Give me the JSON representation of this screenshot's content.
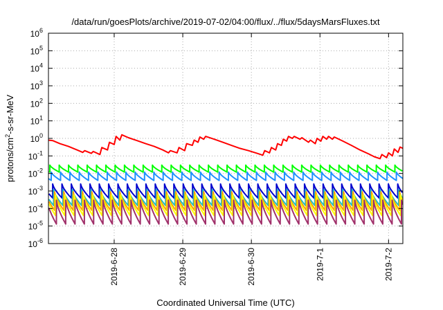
{
  "chart_data": {
    "type": "line",
    "title": "/data/run/goesPlots/archive/2019-07-02/04:00/flux/../flux/5daysMarsFluxes.txt",
    "xlabel": "Coordinated Universal Time (UTC)",
    "ylabel_parts": {
      "base": "protons/cm",
      "sup": "2",
      "rest": "-s-sr-MeV"
    },
    "yscale": "log",
    "ylim": [
      1e-06,
      1000000.0
    ],
    "xlim": [
      "2019-06-27T01:00",
      "2019-07-02T05:00"
    ],
    "grid": true,
    "legend": "none",
    "y_ticks": [
      {
        "value": 1e-06,
        "base": "10",
        "exp": "-6"
      },
      {
        "value": 1e-05,
        "base": "10",
        "exp": "-5"
      },
      {
        "value": 0.0001,
        "base": "10",
        "exp": "-4"
      },
      {
        "value": 0.001,
        "base": "10",
        "exp": "-3"
      },
      {
        "value": 0.01,
        "base": "10",
        "exp": "-2"
      },
      {
        "value": 0.1,
        "base": "10",
        "exp": "-1"
      },
      {
        "value": 1,
        "base": "10",
        "exp": "0"
      },
      {
        "value": 10.0,
        "base": "10",
        "exp": "1"
      },
      {
        "value": 100.0,
        "base": "10",
        "exp": "2"
      },
      {
        "value": 1000.0,
        "base": "10",
        "exp": "3"
      },
      {
        "value": 10000.0,
        "base": "10",
        "exp": "4"
      },
      {
        "value": 100000.0,
        "base": "10",
        "exp": "5"
      },
      {
        "value": 1000000.0,
        "base": "10",
        "exp": "6"
      }
    ],
    "x_ticks": [
      {
        "value": "2019-06-28T00:00",
        "label": "2019-6-28"
      },
      {
        "value": "2019-06-29T00:00",
        "label": "2019-6-29"
      },
      {
        "value": "2019-06-30T00:00",
        "label": "2019-6-30"
      },
      {
        "value": "2019-07-01T00:00",
        "label": "2019-7-1"
      },
      {
        "value": "2019-07-02T00:00",
        "label": "2019-7-2"
      }
    ],
    "series": [
      {
        "color": "#ff0000",
        "points": [
          [
            "2019-06-27T01:00",
            0.8
          ],
          [
            "2019-06-27T02:30",
            0.75
          ],
          [
            "2019-06-27T05:00",
            0.5
          ],
          [
            "2019-06-27T08:00",
            0.35
          ],
          [
            "2019-06-27T11:00",
            0.22
          ],
          [
            "2019-06-27T13:00",
            0.16
          ],
          [
            "2019-06-27T13:40",
            0.2
          ],
          [
            "2019-06-27T16:00",
            0.14
          ],
          [
            "2019-06-27T16:40",
            0.18
          ],
          [
            "2019-06-27T19:00",
            0.12
          ],
          [
            "2019-06-27T19:40",
            0.3
          ],
          [
            "2019-06-27T21:40",
            0.22
          ],
          [
            "2019-06-27T22:20",
            0.6
          ],
          [
            "2019-06-28T00:00",
            0.45
          ],
          [
            "2019-06-28T00:40",
            1.3
          ],
          [
            "2019-06-28T02:00",
            0.8
          ],
          [
            "2019-06-28T02:40",
            1.6
          ],
          [
            "2019-06-28T05:00",
            1.1
          ],
          [
            "2019-06-28T08:00",
            0.75
          ],
          [
            "2019-06-28T11:00",
            0.5
          ],
          [
            "2019-06-28T14:00",
            0.35
          ],
          [
            "2019-06-28T17:00",
            0.22
          ],
          [
            "2019-06-28T19:00",
            0.15
          ],
          [
            "2019-06-28T19:40",
            0.2
          ],
          [
            "2019-06-28T22:00",
            0.15
          ],
          [
            "2019-06-28T22:40",
            0.3
          ],
          [
            "2019-06-29T00:40",
            0.2
          ],
          [
            "2019-06-29T01:20",
            0.5
          ],
          [
            "2019-06-29T03:20",
            0.4
          ],
          [
            "2019-06-29T04:00",
            0.8
          ],
          [
            "2019-06-29T05:20",
            0.6
          ],
          [
            "2019-06-29T06:00",
            1.2
          ],
          [
            "2019-06-29T07:20",
            0.9
          ],
          [
            "2019-06-29T08:00",
            1.3
          ],
          [
            "2019-06-29T11:00",
            0.9
          ],
          [
            "2019-06-29T14:00",
            0.6
          ],
          [
            "2019-06-29T17:00",
            0.4
          ],
          [
            "2019-06-29T20:00",
            0.27
          ],
          [
            "2019-06-29T23:00",
            0.2
          ],
          [
            "2019-06-30T02:00",
            0.14
          ],
          [
            "2019-06-30T04:00",
            0.11
          ],
          [
            "2019-06-30T04:40",
            0.2
          ],
          [
            "2019-06-30T06:20",
            0.15
          ],
          [
            "2019-06-30T07:00",
            0.3
          ],
          [
            "2019-06-30T08:30",
            0.22
          ],
          [
            "2019-06-30T09:10",
            0.5
          ],
          [
            "2019-06-30T10:30",
            0.4
          ],
          [
            "2019-06-30T11:10",
            0.9
          ],
          [
            "2019-06-30T12:20",
            0.7
          ],
          [
            "2019-06-30T13:00",
            1.3
          ],
          [
            "2019-06-30T14:20",
            1.0
          ],
          [
            "2019-06-30T15:00",
            1.3
          ],
          [
            "2019-06-30T17:00",
            0.9
          ],
          [
            "2019-06-30T17:40",
            1.1
          ],
          [
            "2019-06-30T20:00",
            0.6
          ],
          [
            "2019-06-30T20:40",
            0.8
          ],
          [
            "2019-06-30T22:20",
            0.5
          ],
          [
            "2019-06-30T23:00",
            1.0
          ],
          [
            "2019-07-01T00:20",
            0.7
          ],
          [
            "2019-07-01T01:00",
            1.3
          ],
          [
            "2019-07-01T02:20",
            0.9
          ],
          [
            "2019-07-01T03:00",
            1.3
          ],
          [
            "2019-07-01T04:20",
            0.9
          ],
          [
            "2019-07-01T05:00",
            1.2
          ],
          [
            "2019-07-01T08:00",
            0.7
          ],
          [
            "2019-07-01T11:00",
            0.4
          ],
          [
            "2019-07-01T14:00",
            0.22
          ],
          [
            "2019-07-01T17:00",
            0.13
          ],
          [
            "2019-07-01T19:00",
            0.09
          ],
          [
            "2019-07-01T21:00",
            0.07
          ],
          [
            "2019-07-01T21:40",
            0.12
          ],
          [
            "2019-07-01T23:20",
            0.08
          ],
          [
            "2019-07-02T00:00",
            0.15
          ],
          [
            "2019-07-02T01:20",
            0.1
          ],
          [
            "2019-07-02T02:00",
            0.25
          ],
          [
            "2019-07-02T03:20",
            0.16
          ],
          [
            "2019-07-02T04:00",
            0.32
          ],
          [
            "2019-07-02T05:00",
            0.27
          ]
        ]
      },
      {
        "color": "#00ff00",
        "high": 0.03,
        "low": 0.012,
        "cycles": 38,
        "phase": 0.15
      },
      {
        "color": "#1e90ff",
        "high": 0.012,
        "low": 0.004,
        "cycles": 38,
        "phase": 0.3
      },
      {
        "color": "#0000cd",
        "high": 0.0025,
        "low": 0.0004,
        "cycles": 38,
        "phase": 0.45
      },
      {
        "color": "#20c0c0",
        "high": 0.0012,
        "low": 0.00015,
        "cycles": 38,
        "phase": 0.55
      },
      {
        "color": "#ffa000",
        "high": 0.0009,
        "low": 8e-05,
        "cycles": 38,
        "phase": 0.65
      },
      {
        "color": "#ffff00",
        "high": 0.0006,
        "low": 4e-05,
        "cycles": 38,
        "phase": 0.75
      },
      {
        "color": "#a0306a",
        "high": 0.0003,
        "low": 1.3e-05,
        "cycles": 38,
        "phase": 0.85
      }
    ]
  }
}
